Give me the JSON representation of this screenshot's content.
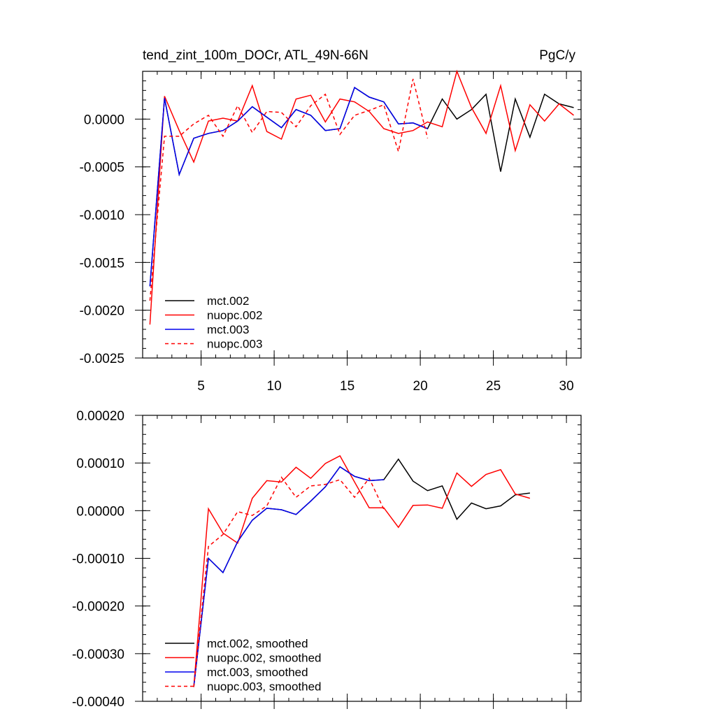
{
  "figure": {
    "title_left": "tend_zint_100m_DOCr, ATL_49N-66N",
    "title_right": "PgC/y"
  },
  "chart_data": [
    {
      "type": "line",
      "title": "tend_zint_100m_DOCr, ATL_49N-66N",
      "units": "PgC/y",
      "xlim": [
        1,
        31
      ],
      "ylim": [
        -0.0025,
        0.0005
      ],
      "x_ticks": [
        5,
        10,
        15,
        20,
        25,
        30
      ],
      "x_tick_labels": [
        "5",
        "10",
        "15",
        "20",
        "25",
        "30"
      ],
      "y_ticks": [
        0,
        -0.0005,
        -0.001,
        -0.0015,
        -0.002,
        -0.0025
      ],
      "y_tick_labels": [
        "0.0000",
        "-0.0005",
        "-0.0010",
        "-0.0015",
        "-0.0020",
        "-0.0025"
      ],
      "x_minor_step": 1,
      "y_minor_step": 0.0001,
      "legend_position": "bottom-left",
      "series": [
        {
          "name": "mct.002",
          "color": "#000000",
          "dash": "solid",
          "x": [
            1.5,
            2.5,
            3.5,
            4.5,
            5.5,
            6.5,
            7.5,
            8.5,
            9.5,
            10.5,
            11.5,
            12.5,
            13.5,
            14.5,
            15.5,
            16.5,
            17.5,
            18.5,
            19.5,
            20.5,
            21.5,
            22.5,
            23.5,
            24.5,
            25.5,
            26.5,
            27.5,
            28.5,
            29.5,
            30.5
          ],
          "y": [
            -0.00175,
            0.00022,
            -0.00058,
            -0.0002,
            -0.00015,
            -0.00012,
            -2e-05,
            0.00013,
            2e-05,
            -9e-05,
            0.0001,
            4e-05,
            -0.00012,
            -0.0001,
            0.00033,
            0.00023,
            0.00018,
            -5e-05,
            -4e-05,
            -0.0001,
            0.00021,
            0.0,
            0.0001,
            0.00026,
            -0.00055,
            0.00021,
            -0.00019,
            0.00026,
            0.00016,
            0.00012
          ]
        },
        {
          "name": "nuopc.002",
          "color": "#ff0000",
          "dash": "solid",
          "x": [
            1.5,
            2.5,
            3.5,
            4.5,
            5.5,
            6.5,
            7.5,
            8.5,
            9.5,
            10.5,
            11.5,
            12.5,
            13.5,
            14.5,
            15.5,
            16.5,
            17.5,
            18.5,
            19.5,
            20.5,
            21.5,
            22.5,
            23.5,
            24.5,
            25.5,
            26.5,
            27.5,
            28.5,
            29.5,
            30.5
          ],
          "y": [
            -0.00215,
            0.00024,
            -0.00012,
            -0.00045,
            -2e-05,
            1e-05,
            -2e-05,
            0.00035,
            -0.00013,
            -0.00021,
            0.00021,
            0.00025,
            -3e-05,
            0.00021,
            0.00018,
            8e-05,
            -0.0001,
            -0.00015,
            -0.00012,
            -3e-05,
            -8e-05,
            0.0005,
            0.00012,
            -0.00015,
            0.00035,
            -0.00033,
            0.00015,
            -2e-05,
            0.00016,
            4e-05
          ]
        },
        {
          "name": "mct.003",
          "color": "#0000ee",
          "dash": "solid",
          "x": [
            1.5,
            2.5,
            3.5,
            4.5,
            5.5,
            6.5,
            7.5,
            8.5,
            9.5,
            10.5,
            11.5,
            12.5,
            13.5,
            14.5,
            15.5,
            16.5,
            17.5,
            18.5,
            19.5,
            20.5
          ],
          "y": [
            -0.00175,
            0.00022,
            -0.00058,
            -0.0002,
            -0.00015,
            -0.00012,
            -2e-05,
            0.00013,
            2e-05,
            -9e-05,
            0.0001,
            4e-05,
            -0.00012,
            -0.0001,
            0.00033,
            0.00023,
            0.00018,
            -5e-05,
            -4e-05,
            -0.0001
          ]
        },
        {
          "name": "nuopc.003",
          "color": "#ff0000",
          "dash": "dashed",
          "x": [
            1.5,
            2.5,
            3.5,
            4.5,
            5.5,
            6.5,
            7.5,
            8.5,
            9.5,
            10.5,
            11.5,
            12.5,
            13.5,
            14.5,
            15.5,
            16.5,
            17.5,
            18.5,
            19.5,
            20.5
          ],
          "y": [
            -0.0019,
            -0.00018,
            -0.00018,
            -5e-05,
            4e-05,
            -0.00018,
            0.00014,
            -0.00014,
            8e-05,
            7e-05,
            -8e-05,
            0.00014,
            0.00026,
            -0.00016,
            4e-05,
            9e-05,
            0.00015,
            -0.00034,
            0.00042,
            -0.0002
          ]
        }
      ]
    },
    {
      "type": "line",
      "xlim": [
        1,
        31
      ],
      "ylim": [
        -0.0004,
        0.0002
      ],
      "x_ticks": [
        5,
        10,
        15,
        20,
        25,
        30
      ],
      "x_tick_labels": [],
      "y_ticks": [
        0.0002,
        0.0001,
        0,
        -0.0001,
        -0.0002,
        -0.0003,
        -0.0004
      ],
      "y_tick_labels": [
        "0.00020",
        "0.00010",
        "0.00000",
        "-0.00010",
        "-0.00020",
        "-0.00030",
        "-0.00040"
      ],
      "x_minor_step": 1,
      "y_minor_step": 2e-05,
      "legend_position": "bottom-left",
      "series": [
        {
          "name": "mct.002, smoothed",
          "color": "#000000",
          "dash": "solid",
          "x": [
            4.5,
            5.5,
            6.5,
            7.5,
            8.5,
            9.5,
            10.5,
            11.5,
            12.5,
            13.5,
            14.5,
            15.5,
            16.5,
            17.5,
            18.5,
            19.5,
            20.5,
            21.5,
            22.5,
            23.5,
            24.5,
            25.5,
            26.5,
            27.5
          ],
          "y": [
            -0.00037,
            -0.0001,
            -0.00013,
            -6.5e-05,
            -2e-05,
            5e-06,
            2e-06,
            -8e-06,
            2e-05,
            5e-05,
            9.2e-05,
            7.2e-05,
            6.3e-05,
            6.5e-05,
            0.000108,
            6.2e-05,
            4.2e-05,
            5.2e-05,
            -1.8e-05,
            1.6e-05,
            4e-06,
            1e-05,
            3.3e-05,
            3.7e-05
          ]
        },
        {
          "name": "nuopc.002, smoothed",
          "color": "#ff0000",
          "dash": "solid",
          "x": [
            4.5,
            5.5,
            6.5,
            7.5,
            8.5,
            9.5,
            10.5,
            11.5,
            12.5,
            13.5,
            14.5,
            15.5,
            16.5,
            17.5,
            18.5,
            19.5,
            20.5,
            21.5,
            22.5,
            23.5,
            24.5,
            25.5,
            26.5,
            27.5
          ],
          "y": [
            -0.00037,
            4e-06,
            -4.7e-05,
            -6.8e-05,
            2.6e-05,
            6.3e-05,
            6e-05,
            9.1e-05,
            6.8e-05,
            9.9e-05,
            0.000115,
            6e-05,
            6e-06,
            6e-06,
            -3.5e-05,
            1.1e-05,
            1.2e-05,
            5e-06,
            7.9e-05,
            5.1e-05,
            7.6e-05,
            8.6e-05,
            3.5e-05,
            2.6e-05
          ]
        },
        {
          "name": "mct.003, smoothed",
          "color": "#0000ee",
          "dash": "solid",
          "x": [
            4.5,
            5.5,
            6.5,
            7.5,
            8.5,
            9.5,
            10.5,
            11.5,
            12.5,
            13.5,
            14.5,
            15.5,
            16.5,
            17.5
          ],
          "y": [
            -0.00037,
            -0.0001,
            -0.00013,
            -6.5e-05,
            -2e-05,
            5e-06,
            2e-06,
            -8e-06,
            2e-05,
            5e-05,
            9.2e-05,
            7.2e-05,
            6.3e-05,
            6.5e-05
          ]
        },
        {
          "name": "nuopc.003, smoothed",
          "color": "#ff0000",
          "dash": "dashed",
          "x": [
            4.5,
            5.5,
            6.5,
            7.5,
            8.5,
            9.5,
            10.5,
            11.5,
            12.5,
            13.5,
            14.5,
            15.5,
            16.5,
            17.5
          ],
          "y": [
            -0.00037,
            -7.5e-05,
            -5e-05,
            -2e-06,
            -1e-05,
            1e-05,
            7e-05,
            2.8e-05,
            5.2e-05,
            5.5e-05,
            6.5e-05,
            2.8e-05,
            6.8e-05,
            3e-06
          ]
        }
      ]
    }
  ]
}
